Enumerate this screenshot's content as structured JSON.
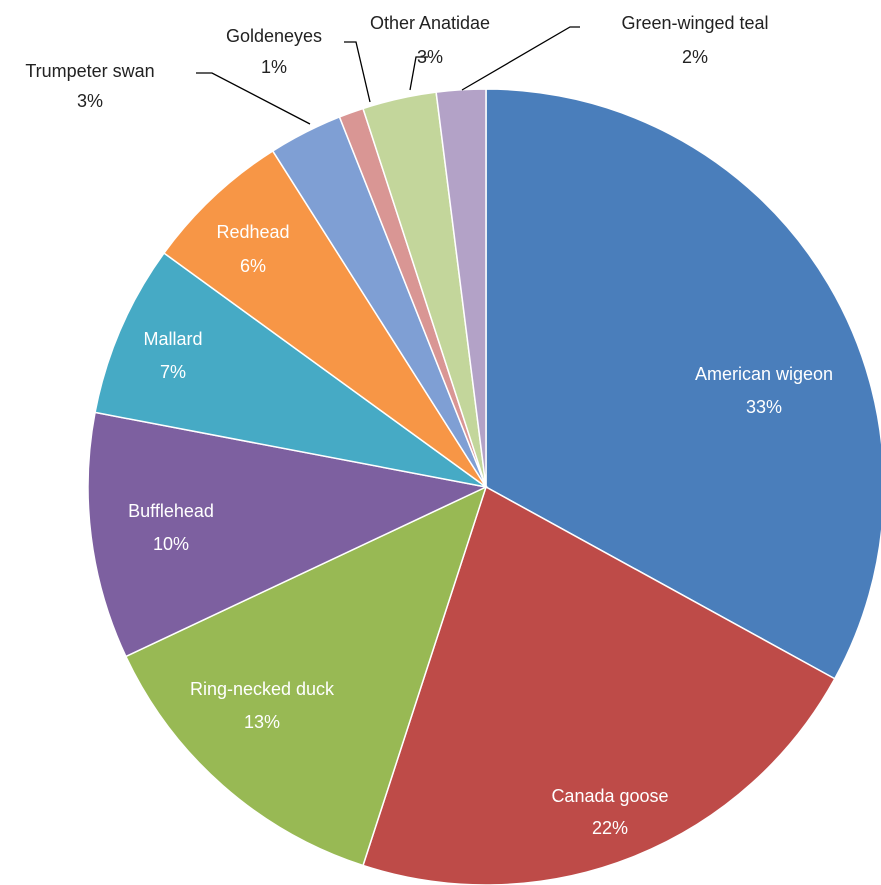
{
  "chart_data": {
    "type": "pie",
    "categories": [
      "American wigeon",
      "Canada goose",
      "Ring-necked duck",
      "Bufflehead",
      "Mallard",
      "Redhead",
      "Trumpeter swan",
      "Goldeneyes",
      "Other Anatidae",
      "Green-winged teal"
    ],
    "values": [
      33,
      22,
      13,
      10,
      7,
      6,
      3,
      1,
      3,
      2
    ],
    "value_labels": [
      "33%",
      "22%",
      "13%",
      "10%",
      "7%",
      "6%",
      "3%",
      "1%",
      "3%",
      "2%"
    ],
    "colors": [
      "#4a7ebb",
      "#be4b48",
      "#98b954",
      "#7d60a0",
      "#46aac5",
      "#f79646",
      "#7f9fd4",
      "#d99694",
      "#c3d69b",
      "#b3a2c7"
    ]
  }
}
